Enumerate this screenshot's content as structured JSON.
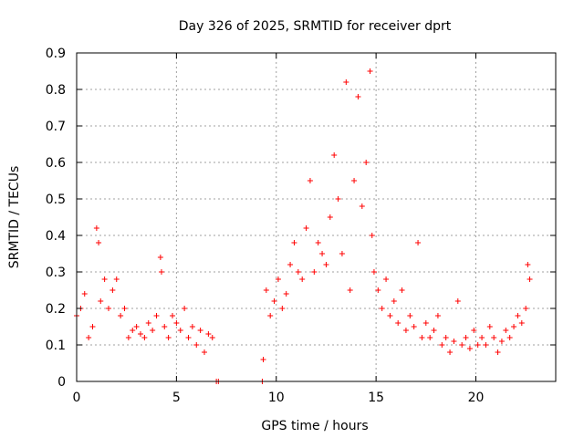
{
  "chart_data": {
    "type": "scatter",
    "title": "Day 326 of 2025, SRMTID for receiver dprt",
    "xlabel": "GPS time / hours",
    "ylabel": "SRMTID / TECUs",
    "xlim": [
      0,
      24
    ],
    "ylim": [
      0,
      0.9
    ],
    "xticks": [
      0,
      5,
      10,
      15,
      20
    ],
    "xtick_labels": [
      "0",
      "5",
      "10",
      "15",
      "20"
    ],
    "yticks": [
      0,
      0.1,
      0.2,
      0.3,
      0.4,
      0.5,
      0.6,
      0.7,
      0.8,
      0.9
    ],
    "ytick_labels": [
      "0",
      "0.1",
      "0.2",
      "0.3",
      "0.4",
      "0.5",
      "0.6",
      "0.7",
      "0.8",
      "0.9"
    ],
    "grid": true,
    "marker": "+",
    "series": [
      {
        "name": "SRMTID",
        "color": "#ff0000",
        "x": [
          0.0,
          0.2,
          0.4,
          0.6,
          0.8,
          1.0,
          1.1,
          1.2,
          1.4,
          1.6,
          1.8,
          2.0,
          2.2,
          2.4,
          2.6,
          2.8,
          3.0,
          3.2,
          3.4,
          3.6,
          3.8,
          4.0,
          4.2,
          4.25,
          4.4,
          4.6,
          4.8,
          5.0,
          5.2,
          5.4,
          5.6,
          5.8,
          6.0,
          6.2,
          6.4,
          6.6,
          6.8,
          7.0,
          7.1,
          9.3,
          9.35,
          9.5,
          9.7,
          9.9,
          10.1,
          10.3,
          10.5,
          10.7,
          10.9,
          11.1,
          11.3,
          11.5,
          11.7,
          11.9,
          12.1,
          12.3,
          12.5,
          12.7,
          12.9,
          13.1,
          13.3,
          13.5,
          13.7,
          13.9,
          14.1,
          14.3,
          14.5,
          14.7,
          14.8,
          14.9,
          15.1,
          15.3,
          15.5,
          15.7,
          15.9,
          16.1,
          16.3,
          16.5,
          16.7,
          16.9,
          17.1,
          17.3,
          17.5,
          17.7,
          17.9,
          18.1,
          18.3,
          18.5,
          18.7,
          18.9,
          19.1,
          19.3,
          19.5,
          19.7,
          19.9,
          20.1,
          20.3,
          20.5,
          20.7,
          20.9,
          21.1,
          21.3,
          21.5,
          21.7,
          21.9,
          22.1,
          22.3,
          22.5,
          22.6,
          22.7
        ],
        "y": [
          0.18,
          0.2,
          0.24,
          0.12,
          0.15,
          0.42,
          0.38,
          0.22,
          0.28,
          0.2,
          0.25,
          0.28,
          0.18,
          0.2,
          0.12,
          0.14,
          0.15,
          0.13,
          0.12,
          0.16,
          0.14,
          0.18,
          0.34,
          0.3,
          0.15,
          0.12,
          0.18,
          0.16,
          0.14,
          0.2,
          0.12,
          0.15,
          0.1,
          0.14,
          0.08,
          0.13,
          0.12,
          0.0,
          0.0,
          0.0,
          0.06,
          0.25,
          0.18,
          0.22,
          0.28,
          0.2,
          0.24,
          0.32,
          0.38,
          0.3,
          0.28,
          0.42,
          0.55,
          0.3,
          0.38,
          0.35,
          0.32,
          0.45,
          0.62,
          0.5,
          0.35,
          0.82,
          0.25,
          0.55,
          0.78,
          0.48,
          0.6,
          0.85,
          0.4,
          0.3,
          0.25,
          0.2,
          0.28,
          0.18,
          0.22,
          0.16,
          0.25,
          0.14,
          0.18,
          0.15,
          0.38,
          0.12,
          0.16,
          0.12,
          0.14,
          0.18,
          0.1,
          0.12,
          0.08,
          0.11,
          0.22,
          0.1,
          0.12,
          0.09,
          0.14,
          0.1,
          0.12,
          0.1,
          0.15,
          0.12,
          0.08,
          0.11,
          0.14,
          0.12,
          0.15,
          0.18,
          0.16,
          0.2,
          0.32,
          0.28
        ]
      }
    ]
  }
}
